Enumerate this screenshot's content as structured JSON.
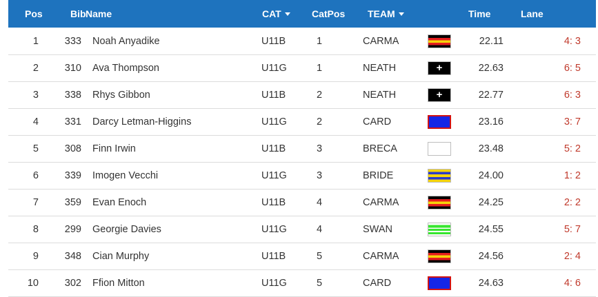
{
  "header": {
    "pos": "Pos",
    "bib": "Bib",
    "name": "Name",
    "cat": "CAT",
    "catpos": "CatPos",
    "team": "TEAM",
    "time": "Time",
    "lane": "Lane"
  },
  "results": [
    {
      "pos": "1",
      "bib": "333",
      "name": "Noah Anyadike",
      "cat": "U11B",
      "catpos": "1",
      "team": "CARMA",
      "flag_icon": "carma-flag-icon",
      "time": "22.11",
      "lane": "4: 3"
    },
    {
      "pos": "2",
      "bib": "310",
      "name": "Ava Thompson",
      "cat": "U11G",
      "catpos": "1",
      "team": "NEATH",
      "flag_icon": "neath-flag-icon",
      "time": "22.63",
      "lane": "6: 5"
    },
    {
      "pos": "3",
      "bib": "338",
      "name": "Rhys Gibbon",
      "cat": "U11B",
      "catpos": "2",
      "team": "NEATH",
      "flag_icon": "neath-flag-icon",
      "time": "22.77",
      "lane": "6: 3"
    },
    {
      "pos": "4",
      "bib": "331",
      "name": "Darcy Letman-Higgins",
      "cat": "U11G",
      "catpos": "2",
      "team": "CARD",
      "flag_icon": "card-flag-icon",
      "time": "23.16",
      "lane": "3: 7"
    },
    {
      "pos": "5",
      "bib": "308",
      "name": "Finn Irwin",
      "cat": "U11B",
      "catpos": "3",
      "team": "BRECA",
      "flag_icon": "breca-flag-icon",
      "time": "23.48",
      "lane": "5: 2"
    },
    {
      "pos": "6",
      "bib": "339",
      "name": "Imogen Vecchi",
      "cat": "U11G",
      "catpos": "3",
      "team": "BRIDE",
      "flag_icon": "bride-flag-icon",
      "time": "24.00",
      "lane": "1: 2"
    },
    {
      "pos": "7",
      "bib": "359",
      "name": "Evan Enoch",
      "cat": "U11B",
      "catpos": "4",
      "team": "CARMA",
      "flag_icon": "carma-flag-icon",
      "time": "24.25",
      "lane": "2: 2"
    },
    {
      "pos": "8",
      "bib": "299",
      "name": "Georgie Davies",
      "cat": "U11G",
      "catpos": "4",
      "team": "SWAN",
      "flag_icon": "swan-flag-icon",
      "time": "24.55",
      "lane": "5: 7"
    },
    {
      "pos": "9",
      "bib": "348",
      "name": "Cian Murphy",
      "cat": "U11B",
      "catpos": "5",
      "team": "CARMA",
      "flag_icon": "carma-flag-icon",
      "time": "24.56",
      "lane": "2: 4"
    },
    {
      "pos": "10",
      "bib": "302",
      "name": "Ffion Mitton",
      "cat": "U11G",
      "catpos": "5",
      "team": "CARD",
      "flag_icon": "card-flag-icon",
      "time": "24.63",
      "lane": "4: 6"
    }
  ],
  "colors": {
    "header_bg": "#1e73be",
    "lane_text": "#c0392b",
    "row_border": "#dcdcdc"
  }
}
